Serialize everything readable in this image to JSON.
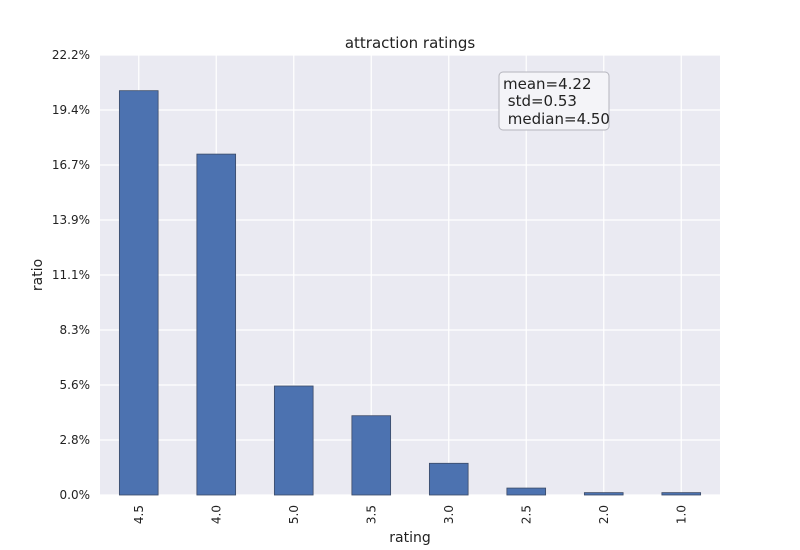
{
  "chart_data": {
    "type": "bar",
    "title": "attraction ratings",
    "xlabel": "rating",
    "ylabel": "ratio",
    "categories": [
      "4.5",
      "4.0",
      "5.0",
      "3.5",
      "3.0",
      "2.5",
      "2.0",
      "1.0"
    ],
    "values": [
      20.4,
      17.2,
      5.5,
      4.0,
      1.6,
      0.35,
      0.12,
      0.12
    ],
    "ylim": [
      0,
      22.2
    ],
    "yticks": [
      "0.0%",
      "2.8%",
      "5.6%",
      "8.3%",
      "11.1%",
      "13.9%",
      "16.7%",
      "19.4%",
      "22.2%"
    ],
    "grid": true,
    "annotation": {
      "lines": [
        "mean=4.22",
        " std=0.53",
        " median=4.50"
      ],
      "position": "top-right"
    },
    "colors": {
      "bar": "#4c72b0",
      "bar_edge": "#3b4a66",
      "plot_bg": "#eaeaf2",
      "grid": "#ffffff",
      "text": "#222222",
      "annotation_bg": "#f4f4f8",
      "annotation_border": "#b5b5bd"
    }
  }
}
